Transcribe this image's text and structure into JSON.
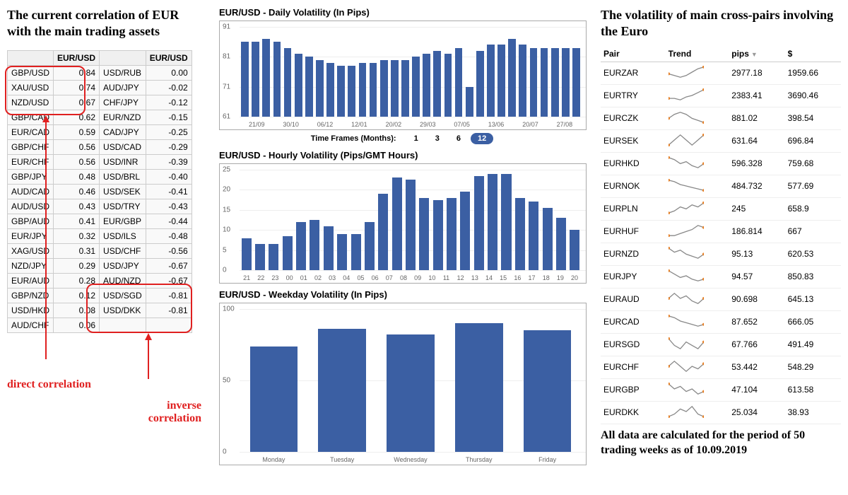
{
  "colors": {
    "bar": "#3b5fa3",
    "highlight": "#e02020",
    "grid": "#eeeeee",
    "border": "#aaaaaa"
  },
  "left": {
    "title": "The current correlation of EUR with the main trading assets",
    "direct_caption": "direct correlation",
    "inverse_caption": "inverse correlation",
    "headers": [
      "",
      "EUR/USD",
      "",
      "EUR/USD"
    ],
    "rows": [
      {
        "p1": "GBP/USD",
        "v1": "0.84",
        "p2": "USD/RUB",
        "v2": "0.00"
      },
      {
        "p1": "XAU/USD",
        "v1": "0.74",
        "p2": "AUD/JPY",
        "v2": "-0.02"
      },
      {
        "p1": "NZD/USD",
        "v1": "0.67",
        "p2": "CHF/JPY",
        "v2": "-0.12"
      },
      {
        "p1": "GBP/CAD",
        "v1": "0.62",
        "p2": "EUR/NZD",
        "v2": "-0.15"
      },
      {
        "p1": "EUR/CAD",
        "v1": "0.59",
        "p2": "CAD/JPY",
        "v2": "-0.25"
      },
      {
        "p1": "GBP/CHF",
        "v1": "0.56",
        "p2": "USD/CAD",
        "v2": "-0.29"
      },
      {
        "p1": "EUR/CHF",
        "v1": "0.56",
        "p2": "USD/INR",
        "v2": "-0.39"
      },
      {
        "p1": "GBP/JPY",
        "v1": "0.48",
        "p2": "USD/BRL",
        "v2": "-0.40"
      },
      {
        "p1": "AUD/CAD",
        "v1": "0.46",
        "p2": "USD/SEK",
        "v2": "-0.41"
      },
      {
        "p1": "AUD/USD",
        "v1": "0.43",
        "p2": "USD/TRY",
        "v2": "-0.43"
      },
      {
        "p1": "GBP/AUD",
        "v1": "0.41",
        "p2": "EUR/GBP",
        "v2": "-0.44"
      },
      {
        "p1": "EUR/JPY",
        "v1": "0.32",
        "p2": "USD/ILS",
        "v2": "-0.48"
      },
      {
        "p1": "XAG/USD",
        "v1": "0.31",
        "p2": "USD/CHF",
        "v2": "-0.56"
      },
      {
        "p1": "NZD/JPY",
        "v1": "0.29",
        "p2": "USD/JPY",
        "v2": "-0.67"
      },
      {
        "p1": "EUR/AUD",
        "v1": "0.28",
        "p2": "AUD/NZD",
        "v2": "-0.67"
      },
      {
        "p1": "GBP/NZD",
        "v1": "0.12",
        "p2": "USD/SGD",
        "v2": "-0.81"
      },
      {
        "p1": "USD/HKD",
        "v1": "0.08",
        "p2": "USD/DKK",
        "v2": "-0.81"
      },
      {
        "p1": "AUD/CHF",
        "v1": "0.06",
        "p2": "",
        "v2": ""
      }
    ]
  },
  "daily": {
    "title": "EUR/USD - Daily Volatility (In Pips)",
    "ylim": [
      61,
      91
    ],
    "yticks": [
      61,
      71,
      81,
      91
    ],
    "xticks": [
      "21/09",
      "30/10",
      "06/12",
      "12/01",
      "20/02",
      "29/03",
      "07/05",
      "13/06",
      "20/07",
      "27/08"
    ],
    "values": [
      86,
      86,
      87,
      86,
      84,
      82,
      81,
      80,
      79,
      78,
      78,
      79,
      79,
      80,
      80,
      80,
      81,
      82,
      83,
      82,
      84,
      71,
      83,
      85,
      85,
      87,
      85,
      84,
      84,
      84,
      84,
      84
    ],
    "timeframe_label": "Time Frames (Months):",
    "timeframes": [
      "1",
      "3",
      "6",
      "12"
    ],
    "active_tf": "12"
  },
  "hourly": {
    "title": "EUR/USD - Hourly Volatility (Pips/GMT Hours)",
    "ylim": [
      0,
      25
    ],
    "yticks": [
      0,
      5,
      10,
      15,
      20,
      25
    ],
    "xticks": [
      "21",
      "22",
      "23",
      "00",
      "01",
      "02",
      "03",
      "04",
      "05",
      "06",
      "07",
      "08",
      "09",
      "10",
      "11",
      "12",
      "13",
      "14",
      "15",
      "16",
      "17",
      "18",
      "19",
      "20"
    ],
    "values": [
      8,
      6.5,
      6.5,
      8.5,
      12,
      12.5,
      11,
      9,
      9,
      12,
      19,
      23,
      22.5,
      18,
      17.5,
      18,
      19.5,
      23.5,
      24,
      24,
      18,
      17,
      15.5,
      13,
      10
    ]
  },
  "weekday": {
    "title": "EUR/USD - Weekday Volatility (In Pips)",
    "ylim": [
      0,
      100
    ],
    "yticks": [
      0,
      50,
      100
    ],
    "xticks": [
      "Monday",
      "Tuesday",
      "Wednesday",
      "Thursday",
      "Friday"
    ],
    "values": [
      74,
      86,
      82,
      90,
      85
    ]
  },
  "right": {
    "title": "The volatility of main cross-pairs involving the Euro",
    "headers": [
      "Pair",
      "Trend",
      "pips",
      "$"
    ],
    "rows": [
      {
        "pair": "EURZAR",
        "pips": "2977.18",
        "usd": "1959.66",
        "spark": [
          5,
          4,
          3,
          4,
          6,
          8,
          9
        ]
      },
      {
        "pair": "EURTRY",
        "pips": "2383.41",
        "usd": "3690.46",
        "spark": [
          3,
          3,
          2,
          4,
          5,
          7,
          9
        ]
      },
      {
        "pair": "EURCZK",
        "pips": "881.02",
        "usd": "398.54",
        "spark": [
          6,
          8,
          9,
          8,
          6,
          5,
          4
        ]
      },
      {
        "pair": "EURSEK",
        "pips": "631.64",
        "usd": "696.84",
        "spark": [
          4,
          5,
          6,
          5,
          4,
          5,
          6
        ]
      },
      {
        "pair": "EURHKD",
        "pips": "596.328",
        "usd": "759.68",
        "spark": [
          8,
          7,
          5,
          6,
          4,
          3,
          5
        ]
      },
      {
        "pair": "EURNOK",
        "pips": "484.732",
        "usd": "577.69",
        "spark": [
          9,
          8,
          6,
          5,
          4,
          3,
          2
        ]
      },
      {
        "pair": "EURPLN",
        "pips": "245",
        "usd": "658.9",
        "spark": [
          4,
          5,
          7,
          6,
          8,
          7,
          9
        ]
      },
      {
        "pair": "EURHUF",
        "pips": "186.814",
        "usd": "667",
        "spark": [
          3,
          3,
          4,
          5,
          6,
          8,
          7
        ]
      },
      {
        "pair": "EURNZD",
        "pips": "95.13",
        "usd": "620.53",
        "spark": [
          8,
          6,
          7,
          5,
          4,
          3,
          5
        ]
      },
      {
        "pair": "EURJPY",
        "pips": "94.57",
        "usd": "850.83",
        "spark": [
          9,
          7,
          5,
          6,
          4,
          3,
          4
        ]
      },
      {
        "pair": "EURAUD",
        "pips": "90.698",
        "usd": "645.13",
        "spark": [
          6,
          8,
          6,
          7,
          5,
          4,
          6
        ]
      },
      {
        "pair": "EURCAD",
        "pips": "87.652",
        "usd": "666.05",
        "spark": [
          8,
          7,
          5,
          4,
          3,
          2,
          3
        ]
      },
      {
        "pair": "EURSGD",
        "pips": "67.766",
        "usd": "491.49",
        "spark": [
          7,
          5,
          4,
          6,
          5,
          4,
          6
        ]
      },
      {
        "pair": "EURCHF",
        "pips": "53.442",
        "usd": "548.29",
        "spark": [
          6,
          8,
          6,
          4,
          6,
          5,
          7
        ]
      },
      {
        "pair": "EURGBP",
        "pips": "47.104",
        "usd": "613.58",
        "spark": [
          8,
          6,
          7,
          5,
          6,
          4,
          5
        ]
      },
      {
        "pair": "EURDKK",
        "pips": "25.034",
        "usd": "38.93",
        "spark": [
          4,
          5,
          7,
          6,
          8,
          5,
          4
        ]
      }
    ],
    "note": "All data are calculated for the period of 50 trading weeks as of 10.09.2019"
  }
}
